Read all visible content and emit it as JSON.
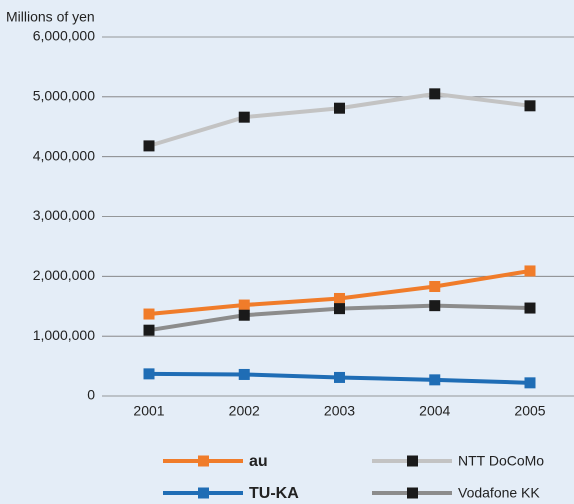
{
  "chart_data": {
    "type": "line",
    "y_axis_label": "Millions of yen",
    "categories": [
      "2001",
      "2002",
      "2003",
      "2004",
      "2005"
    ],
    "ylim": [
      0,
      6000000
    ],
    "yticks": [
      0,
      {
        "value": 1000000,
        "label": "1,000,000"
      },
      {
        "value": 2000000,
        "label": "2,000,000"
      },
      {
        "value": 3000000,
        "label": "3,000,000"
      },
      {
        "value": 4000000,
        "label": "4,000,000"
      },
      {
        "value": 5000000,
        "label": "5,000,000"
      },
      {
        "value": 6000000,
        "label": "6,000,000"
      }
    ],
    "grid": true,
    "series": [
      {
        "name": "au",
        "color": "#f07c2a",
        "marker_color": "#f07c2a",
        "values": [
          1370000,
          1520000,
          1630000,
          1830000,
          2090000
        ]
      },
      {
        "name": "NTT DoCoMo",
        "color": "#c3c3c3",
        "marker_color": "#1a1a1a",
        "values": [
          4180000,
          4660000,
          4810000,
          5050000,
          4850000
        ]
      },
      {
        "name": "TU-KA",
        "color": "#1f6db5",
        "marker_color": "#1f6db5",
        "values": [
          370000,
          360000,
          310000,
          270000,
          220000
        ]
      },
      {
        "name": "Vodafone KK",
        "color": "#8c8c8c",
        "marker_color": "#1a1a1a",
        "values": [
          1100000,
          1350000,
          1460000,
          1510000,
          1470000
        ]
      }
    ]
  }
}
